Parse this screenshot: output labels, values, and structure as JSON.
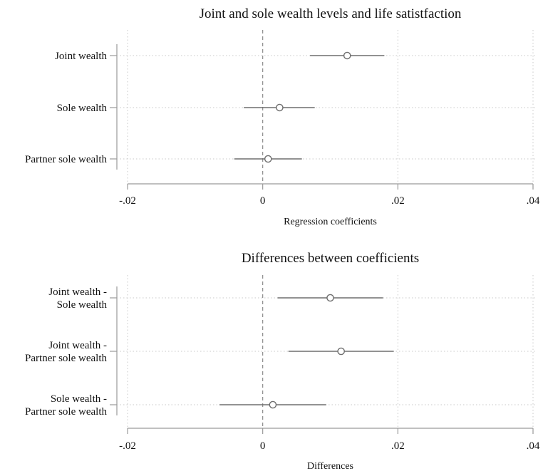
{
  "chart_data": [
    {
      "type": "coefficient-plot",
      "title": "Joint and sole wealth levels and life satistfaction",
      "xlabel": "Regression coefficients",
      "xlim": [
        -0.02,
        0.04
      ],
      "xticks": [
        {
          "value": -0.02,
          "label": "-.02"
        },
        {
          "value": 0,
          "label": "0"
        },
        {
          "value": 0.02,
          "label": ".02"
        },
        {
          "value": 0.04,
          "label": ".04"
        }
      ],
      "reference_line": 0,
      "grid": "dotted",
      "rows": [
        {
          "label_lines": [
            "Joint wealth"
          ],
          "estimate": 0.0125,
          "ci": [
            0.007,
            0.018
          ]
        },
        {
          "label_lines": [
            "Sole wealth"
          ],
          "estimate": 0.0025,
          "ci": [
            -0.0028,
            0.0077
          ]
        },
        {
          "label_lines": [
            "Partner sole wealth"
          ],
          "estimate": 0.0008,
          "ci": [
            -0.0042,
            0.0058
          ]
        }
      ]
    },
    {
      "type": "coefficient-plot",
      "title": "Differences between coefficients",
      "xlabel": "Differences",
      "xlim": [
        -0.02,
        0.04
      ],
      "xticks": [
        {
          "value": -0.02,
          "label": "-.02"
        },
        {
          "value": 0,
          "label": "0"
        },
        {
          "value": 0.02,
          "label": ".02"
        },
        {
          "value": 0.04,
          "label": ".04"
        }
      ],
      "reference_line": 0,
      "grid": "dotted",
      "rows": [
        {
          "label_lines": [
            "Joint wealth -",
            "Sole wealth"
          ],
          "estimate": 0.01,
          "ci": [
            0.0022,
            0.0178
          ]
        },
        {
          "label_lines": [
            "Joint wealth -",
            "Partner sole wealth"
          ],
          "estimate": 0.0116,
          "ci": [
            0.0038,
            0.0194
          ]
        },
        {
          "label_lines": [
            "Sole wealth -",
            "Partner sole wealth"
          ],
          "estimate": 0.0015,
          "ci": [
            -0.0064,
            0.0094
          ]
        }
      ]
    }
  ]
}
